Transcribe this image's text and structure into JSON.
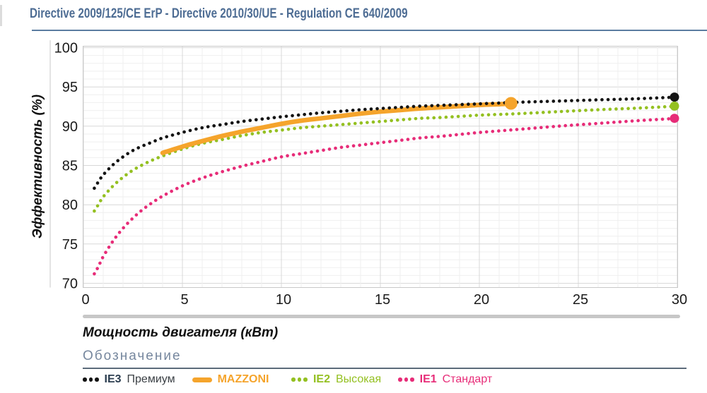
{
  "colors": {
    "title": "#4e6d94",
    "title_rule": "#5b7ca0",
    "legend_heading": "#76879e",
    "legend_rule": "#5c6b7a",
    "scrollbar": "#c7c7c7",
    "grid_minor": "#efefef",
    "grid_major": "#d8d8d8",
    "plot_border": "#c8c8c8",
    "tick_text": "#1b1b1b"
  },
  "legend": {
    "heading": "Обозначение",
    "items": [
      {
        "id": "ie3-premium",
        "marker": "dots",
        "color": "#141414",
        "code": "IE3",
        "label": "Премиум",
        "code_color": "#2c3e50",
        "label_color": "#3b4045"
      },
      {
        "id": "mazzoni",
        "marker": "line",
        "color": "#f5a42c",
        "code": "MAZZONI",
        "label": "",
        "code_color": "#f5a42c",
        "label_color": "#f5a42c"
      },
      {
        "id": "ie2-high",
        "marker": "dots",
        "color": "#94c021",
        "code": "IE2",
        "label": "Высокая",
        "code_color": "#94c021",
        "label_color": "#94c021"
      },
      {
        "id": "ie1-standard",
        "marker": "dots",
        "color": "#e72c78",
        "code": "IE1",
        "label": "Стандарт",
        "code_color": "#e72c78",
        "label_color": "#e72c78"
      }
    ]
  },
  "chart_data": {
    "type": "line",
    "title": "Directive 2009/125/CE ErP - Directive 2010/30/UE - Regulation CE 640/2009",
    "xlabel": "Мощность двигателя (кВт)",
    "ylabel": "Эффективность (%)",
    "xlim": [
      0,
      30
    ],
    "ylim": [
      70,
      100
    ],
    "x_ticks": [
      0,
      5,
      10,
      15,
      20,
      25,
      30
    ],
    "y_ticks": [
      70,
      75,
      80,
      85,
      90,
      95,
      100
    ],
    "grid": "minor every 1 unit, major every 5 units",
    "legend_position": "bottom",
    "series": [
      {
        "id": "ie3-premium",
        "name": "IE3 Премиум",
        "style": "dotted",
        "color": "#141414",
        "end_marker": true,
        "points": [
          [
            0.55,
            82.1
          ],
          [
            0.75,
            82.9
          ],
          [
            1,
            83.8
          ],
          [
            1.5,
            85.1
          ],
          [
            2,
            86.1
          ],
          [
            2.5,
            86.9
          ],
          [
            3,
            87.5
          ],
          [
            3.5,
            88.0
          ],
          [
            4,
            88.5
          ],
          [
            5,
            89.2
          ],
          [
            6,
            89.8
          ],
          [
            7,
            90.2
          ],
          [
            8,
            90.6
          ],
          [
            9,
            90.9
          ],
          [
            10,
            91.2
          ],
          [
            11,
            91.45
          ],
          [
            12,
            91.7
          ],
          [
            13,
            91.9
          ],
          [
            14,
            92.1
          ],
          [
            15,
            92.25
          ],
          [
            16,
            92.4
          ],
          [
            17,
            92.55
          ],
          [
            18,
            92.65
          ],
          [
            19,
            92.75
          ],
          [
            20,
            92.85
          ],
          [
            21,
            92.95
          ],
          [
            22,
            93.05
          ],
          [
            24,
            93.2
          ],
          [
            26,
            93.35
          ],
          [
            28,
            93.5
          ],
          [
            30,
            93.7
          ]
        ]
      },
      {
        "id": "mazzoni",
        "name": "MAZZONI",
        "style": "solid",
        "color": "#f5a42c",
        "end_marker": true,
        "points": [
          [
            4,
            86.6
          ],
          [
            5,
            87.4
          ],
          [
            6,
            88.1
          ],
          [
            7,
            88.75
          ],
          [
            8,
            89.3
          ],
          [
            9,
            89.8
          ],
          [
            10,
            90.3
          ],
          [
            11,
            90.7
          ],
          [
            12,
            91.0
          ],
          [
            13,
            91.3
          ],
          [
            14,
            91.6
          ],
          [
            15,
            91.85
          ],
          [
            16,
            92.05
          ],
          [
            17,
            92.25
          ],
          [
            18,
            92.4
          ],
          [
            19,
            92.55
          ],
          [
            20,
            92.7
          ],
          [
            21,
            92.8
          ],
          [
            21.6,
            92.9
          ]
        ]
      },
      {
        "id": "ie2-high",
        "name": "IE2 Высокая",
        "style": "dotted",
        "color": "#94c021",
        "end_marker": true,
        "points": [
          [
            0.55,
            79.2
          ],
          [
            0.75,
            80.0
          ],
          [
            1,
            81.0
          ],
          [
            1.5,
            82.4
          ],
          [
            2,
            83.5
          ],
          [
            2.5,
            84.4
          ],
          [
            3,
            85.1
          ],
          [
            3.5,
            85.7
          ],
          [
            4,
            86.2
          ],
          [
            5,
            87.1
          ],
          [
            6,
            87.8
          ],
          [
            7,
            88.3
          ],
          [
            8,
            88.8
          ],
          [
            9,
            89.2
          ],
          [
            10,
            89.5
          ],
          [
            11,
            89.8
          ],
          [
            12,
            90.0
          ],
          [
            13,
            90.2
          ],
          [
            14,
            90.4
          ],
          [
            15,
            90.6
          ],
          [
            16,
            90.8
          ],
          [
            17,
            91.0
          ],
          [
            18,
            91.1
          ],
          [
            19,
            91.25
          ],
          [
            20,
            91.4
          ],
          [
            21,
            91.5
          ],
          [
            22,
            91.6
          ],
          [
            24,
            91.85
          ],
          [
            26,
            92.1
          ],
          [
            28,
            92.3
          ],
          [
            30,
            92.55
          ]
        ]
      },
      {
        "id": "ie1-standard",
        "name": "IE1 Стандарт",
        "style": "dotted",
        "color": "#e72c78",
        "end_marker": true,
        "points": [
          [
            0.55,
            71.2
          ],
          [
            0.75,
            72.1
          ],
          [
            1,
            73.4
          ],
          [
            1.5,
            75.4
          ],
          [
            2,
            77.0
          ],
          [
            2.5,
            78.3
          ],
          [
            3,
            79.4
          ],
          [
            3.5,
            80.3
          ],
          [
            4,
            81.1
          ],
          [
            5,
            82.4
          ],
          [
            6,
            83.4
          ],
          [
            7,
            84.2
          ],
          [
            8,
            84.9
          ],
          [
            9,
            85.5
          ],
          [
            10,
            86.1
          ],
          [
            11,
            86.5
          ],
          [
            12,
            86.9
          ],
          [
            13,
            87.3
          ],
          [
            14,
            87.6
          ],
          [
            15,
            87.9
          ],
          [
            16,
            88.2
          ],
          [
            17,
            88.5
          ],
          [
            18,
            88.7
          ],
          [
            19,
            88.95
          ],
          [
            20,
            89.2
          ],
          [
            21,
            89.4
          ],
          [
            22,
            89.6
          ],
          [
            24,
            90.0
          ],
          [
            26,
            90.35
          ],
          [
            28,
            90.7
          ],
          [
            30,
            91.0
          ]
        ]
      }
    ]
  }
}
